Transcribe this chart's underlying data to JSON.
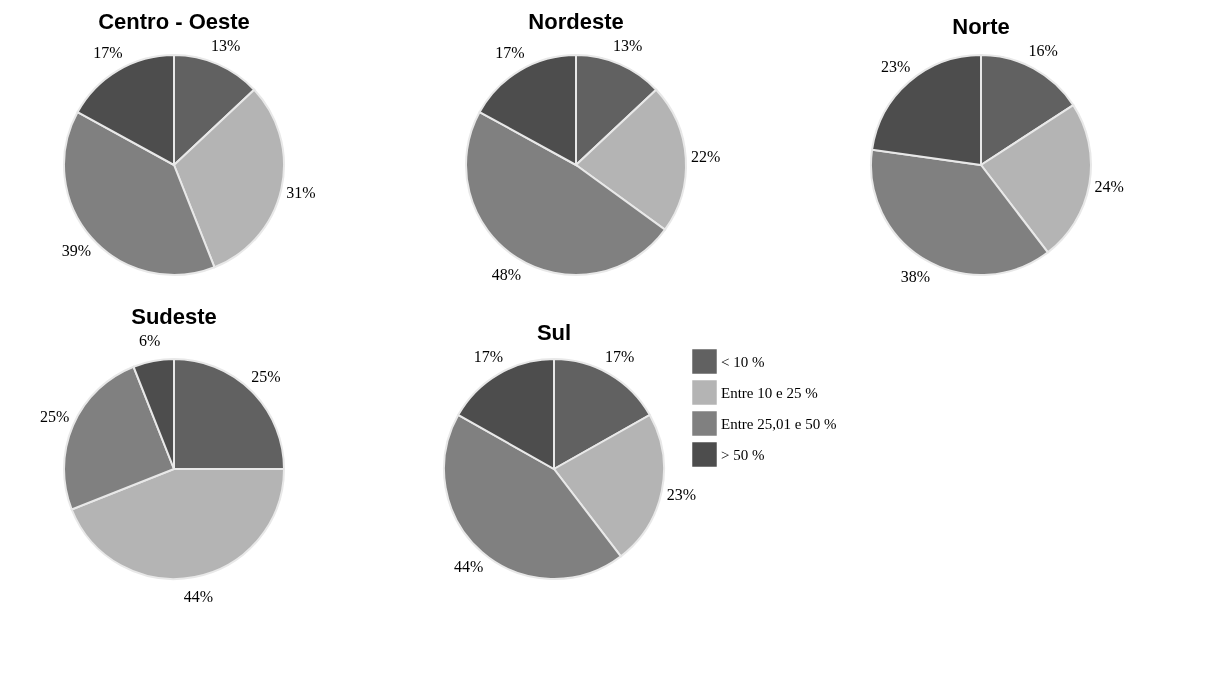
{
  "chart_data": [
    {
      "type": "pie",
      "title": "Centro - Oeste",
      "categories": [
        null,
        null,
        null,
        null
      ],
      "values": [
        13,
        31,
        39,
        17
      ],
      "value_labels": [
        "13%",
        "31%",
        "39%",
        "17%"
      ],
      "colors": [
        "#616161",
        "#b4b4b4",
        "#808080",
        "#4d4d4d"
      ],
      "legend": false
    },
    {
      "type": "pie",
      "title": "Nordeste",
      "categories": [
        null,
        null,
        null,
        null
      ],
      "values": [
        13,
        22,
        48,
        17
      ],
      "value_labels": [
        "13%",
        "22%",
        "48%",
        "17%"
      ],
      "colors": [
        "#616161",
        "#b4b4b4",
        "#808080",
        "#4d4d4d"
      ],
      "legend": false
    },
    {
      "type": "pie",
      "title": "Norte",
      "categories": [
        null,
        null,
        null,
        null
      ],
      "values": [
        16,
        24,
        38,
        23
      ],
      "value_labels": [
        "16%",
        "24%",
        "38%",
        "23%"
      ],
      "colors": [
        "#616161",
        "#b4b4b4",
        "#808080",
        "#4d4d4d"
      ],
      "legend": false
    },
    {
      "type": "pie",
      "title": "Sudeste",
      "categories": [
        null,
        null,
        null,
        null
      ],
      "values": [
        25,
        44,
        25,
        6
      ],
      "value_labels": [
        "25%",
        "44%",
        "25%",
        "6%"
      ],
      "colors": [
        "#616161",
        "#b4b4b4",
        "#808080",
        "#4d4d4d"
      ],
      "legend": false
    },
    {
      "type": "pie",
      "title": "Sul",
      "categories": [
        "< 10 %",
        "Entre 10 e 25 %",
        "Entre 25,01 e 50 %",
        "> 50 %"
      ],
      "values": [
        17,
        23,
        44,
        17
      ],
      "value_labels": [
        "17%",
        "23%",
        "44%",
        "17%"
      ],
      "colors": [
        "#616161",
        "#b4b4b4",
        "#808080",
        "#4d4d4d"
      ],
      "legend": "right"
    }
  ]
}
